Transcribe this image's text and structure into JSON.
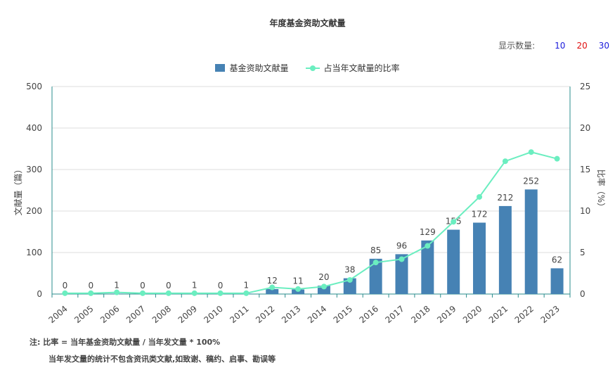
{
  "chart_data": {
    "type": "bar",
    "title": "年度基金资助文献量",
    "categories": [
      "2004",
      "2005",
      "2006",
      "2007",
      "2008",
      "2009",
      "2010",
      "2011",
      "2012",
      "2013",
      "2014",
      "2015",
      "2016",
      "2017",
      "2018",
      "2019",
      "2020",
      "2021",
      "2022",
      "2023"
    ],
    "series": [
      {
        "name": "基金资助文献量",
        "type": "bar",
        "axis": "left",
        "color": "#4682b4",
        "values": [
          0,
          0,
          1,
          0,
          0,
          1,
          0,
          1,
          12,
          11,
          20,
          38,
          85,
          96,
          129,
          155,
          172,
          212,
          252,
          62
        ]
      },
      {
        "name": "占当年文献量的比率",
        "type": "line",
        "axis": "right",
        "color": "#6beec0",
        "values": [
          0.1,
          0.1,
          0.2,
          0.1,
          0.1,
          0.1,
          0.1,
          0.1,
          0.8,
          0.6,
          0.9,
          1.7,
          3.8,
          4.2,
          5.8,
          8.7,
          11.7,
          16.0,
          17.1,
          16.3
        ]
      }
    ],
    "ylabel": "文献量（篇）",
    "ylabel_right": "比率（%）",
    "ylim": [
      0,
      500
    ],
    "ylim_right": [
      0,
      25
    ],
    "yticks": [
      0,
      100,
      200,
      300,
      400,
      500
    ],
    "yticks_right": [
      0,
      5,
      10,
      15,
      20,
      25
    ],
    "grid": true,
    "legend_position": "top-center"
  },
  "count_selector": {
    "label": "显示数量:",
    "options": [
      {
        "text": "10",
        "color": "#1a1adb"
      },
      {
        "text": "20",
        "color": "#e01010"
      },
      {
        "text": "30",
        "color": "#1a1adb"
      }
    ]
  },
  "notes": {
    "line1": "注:   比率 = 当年基金资助文献量 / 当年发文量 * 100%",
    "line2": "当年发文量的统计不包含资讯类文献,如致谢、稿约、启事、勘误等"
  }
}
